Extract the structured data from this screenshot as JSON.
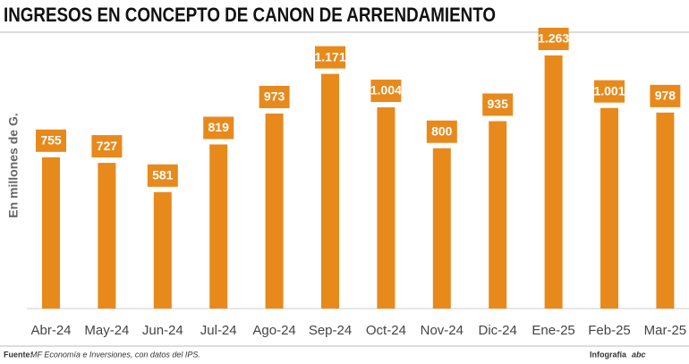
{
  "chart_data": {
    "type": "bar",
    "title": "INGRESOS EN CONCEPTO DE CANON DE ARRENDAMIENTO",
    "y_label": "En millones de G.",
    "categories": [
      "Abr-24",
      "May-24",
      "Jun-24",
      "Jul-24",
      "Ago-24",
      "Sep-24",
      "Oct-24",
      "Nov-24",
      "Dic-24",
      "Ene-25",
      "Feb-25",
      "Mar-25"
    ],
    "values": [
      755,
      727,
      581,
      819,
      973,
      1171,
      1004,
      800,
      935,
      1263,
      1001,
      978
    ],
    "value_labels": [
      "755",
      "727",
      "581",
      "819",
      "973",
      "1.171",
      "1.004",
      "800",
      "935",
      "1.263",
      "1.001",
      "978"
    ],
    "color": "#e8891c"
  },
  "footer": {
    "source_label": "Fuente:",
    "source": "MF Economía e Inversiones, con datos del IPS.",
    "credit": "Infografía",
    "logo": "abc"
  }
}
